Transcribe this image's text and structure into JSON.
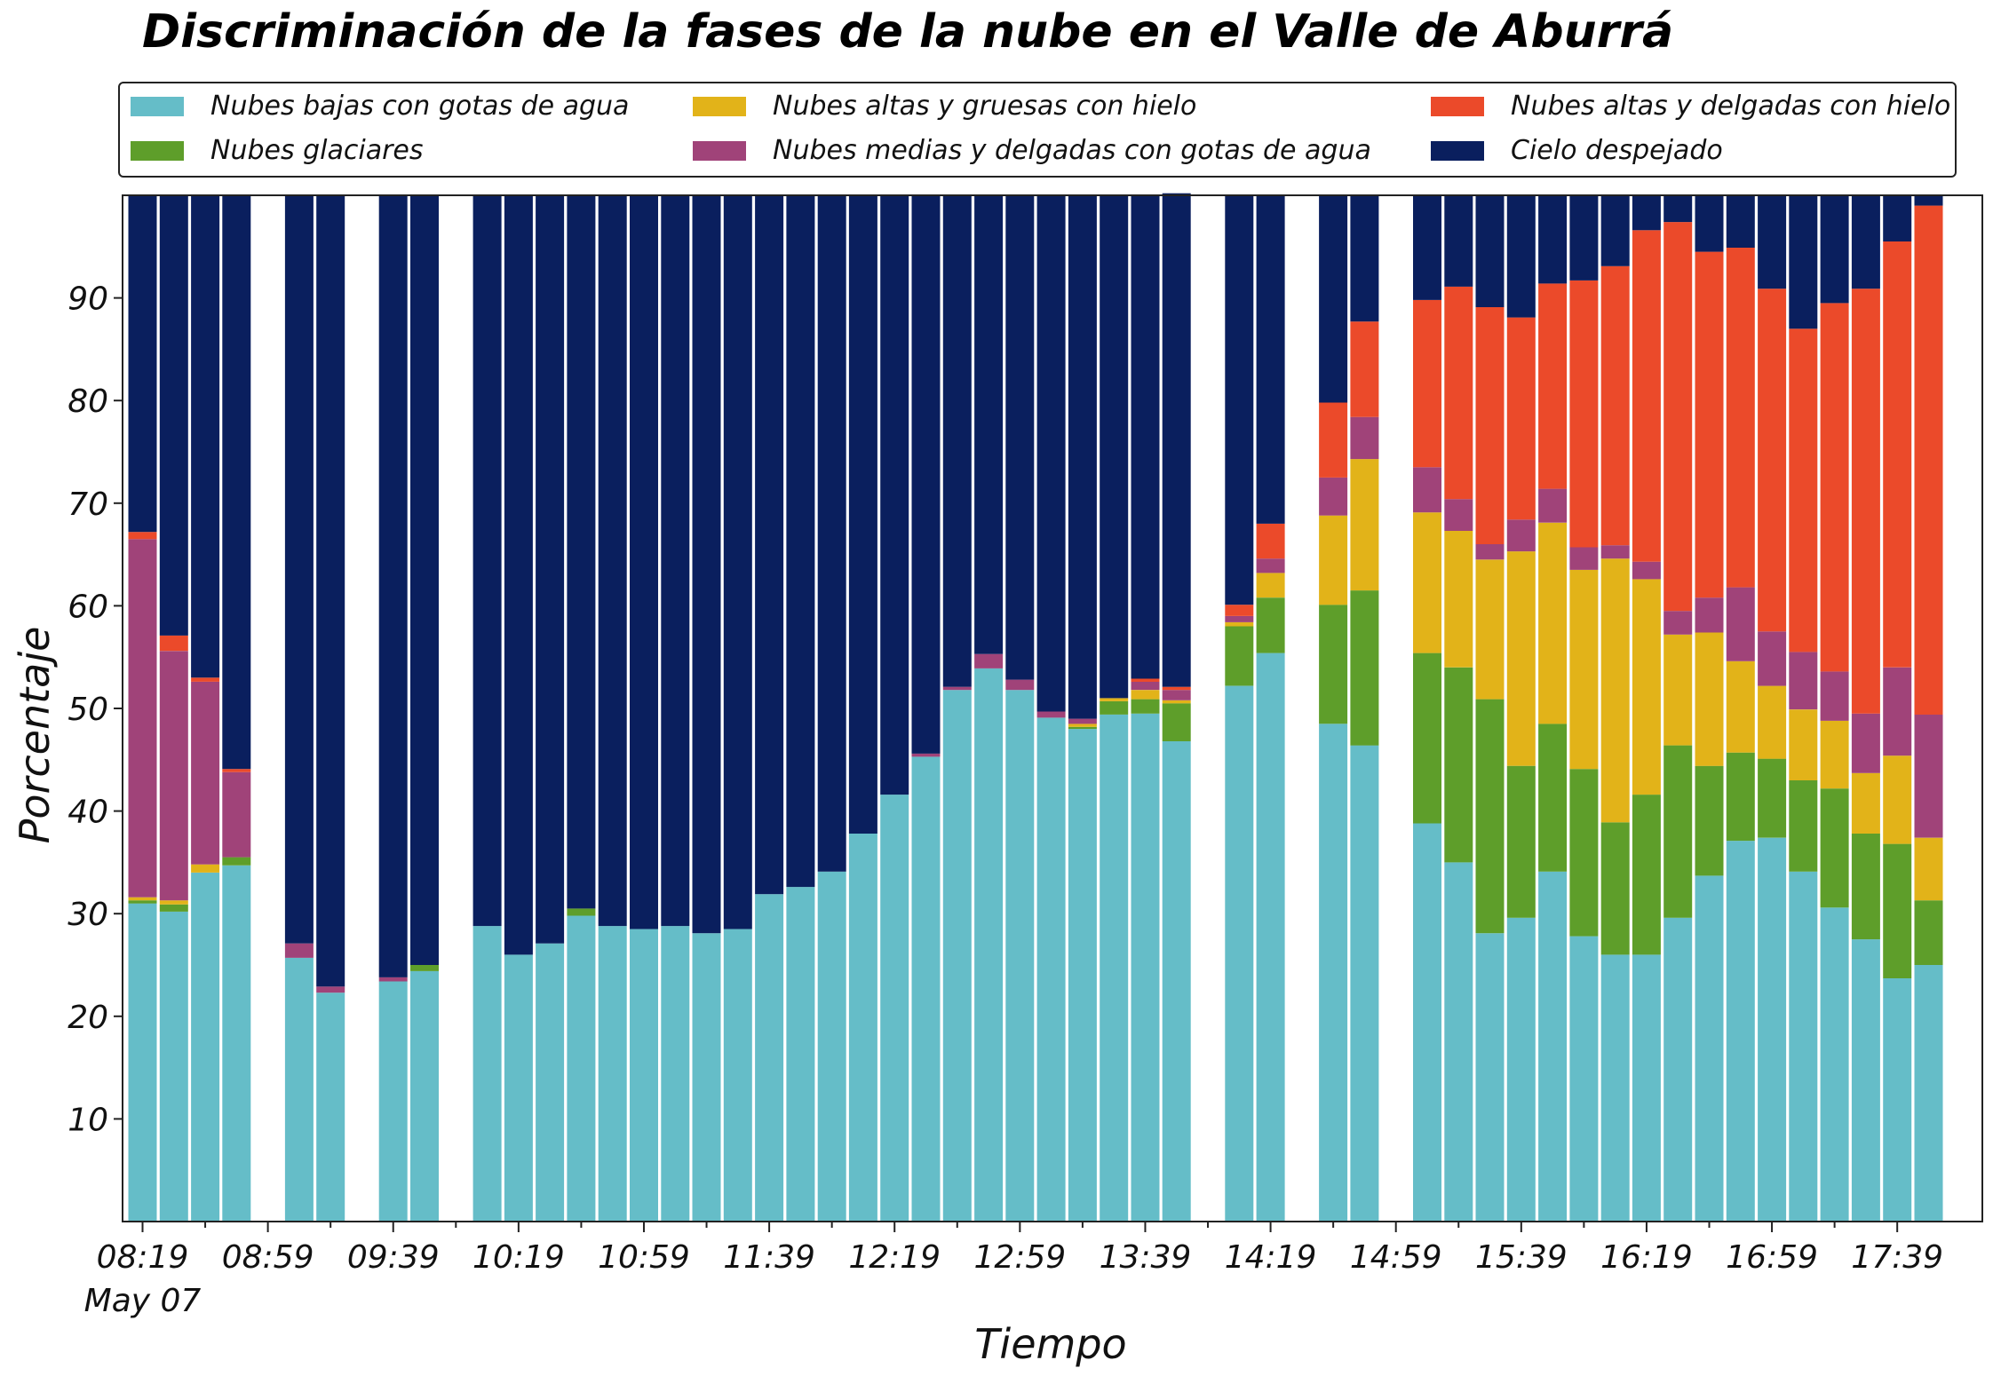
{
  "chart_data": {
    "type": "bar",
    "stacked": true,
    "title": "Discriminación de la fases de la nube en el Valle de Aburrá",
    "xlabel": "Tiempo",
    "ylabel": "Porcentaje",
    "ylim": [
      0,
      100
    ],
    "yticks": [
      10,
      20,
      30,
      40,
      50,
      60,
      70,
      80,
      90
    ],
    "xtick_labels": [
      "08:19",
      "08:59",
      "09:39",
      "10:19",
      "10:59",
      "11:39",
      "12:19",
      "12:59",
      "13:39",
      "14:19",
      "14:59",
      "15:39",
      "16:19",
      "16:59",
      "17:39"
    ],
    "x_date_label": "May 07",
    "legend_position": "top",
    "legend": [
      {
        "name": "Nubes bajas con gotas de agua",
        "color": "#65BDC8"
      },
      {
        "name": "Nubes altas y gruesas con hielo",
        "color": "#E2B319"
      },
      {
        "name": "Nubes altas y delgadas con hielo",
        "color": "#EB4A2A"
      },
      {
        "name": "Nubes glaciares",
        "color": "#5E9E2A"
      },
      {
        "name": "Nubes medias y delgadas con gotas de agua",
        "color": "#A04379"
      },
      {
        "name": "Cielo despejado",
        "color": "#0A1F5E"
      }
    ],
    "stack_order": [
      "Nubes bajas con gotas de agua",
      "Nubes glaciares",
      "Nubes altas y gruesas con hielo",
      "Nubes medias y delgadas con gotas de agua",
      "Nubes altas y delgadas con hielo",
      "Cielo despejado"
    ],
    "x": [
      "08:19",
      "08:29",
      "08:39",
      "08:49",
      "08:59",
      "09:09",
      "09:19",
      "09:29",
      "09:39",
      "09:49",
      "09:59",
      "10:09",
      "10:19",
      "10:29",
      "10:39",
      "10:49",
      "10:59",
      "11:09",
      "11:19",
      "11:29",
      "11:39",
      "11:49",
      "11:59",
      "12:09",
      "12:19",
      "12:29",
      "12:39",
      "12:49",
      "12:59",
      "13:09",
      "13:19",
      "13:29",
      "13:39",
      "13:49",
      "13:59",
      "14:09",
      "14:19",
      "14:29",
      "14:39",
      "14:49",
      "14:59",
      "15:09",
      "15:19",
      "15:29",
      "15:39",
      "15:49",
      "15:59",
      "16:09",
      "16:19",
      "16:29",
      "16:39",
      "16:49",
      "16:59",
      "17:09",
      "17:19",
      "17:29",
      "17:39",
      "17:49"
    ],
    "series": [
      {
        "name": "Nubes bajas con gotas de agua",
        "color": "#65BDC8",
        "values": [
          31,
          30.2,
          34,
          34.7,
          null,
          25.7,
          22.3,
          null,
          23.4,
          24.4,
          null,
          28.8,
          26,
          27.1,
          29.8,
          28.8,
          28.5,
          28.8,
          28.1,
          28.5,
          31.9,
          32.6,
          34.1,
          37.8,
          41.6,
          45.3,
          51.8,
          53.9,
          51.8,
          49.1,
          48,
          49.4,
          49.5,
          46.8,
          null,
          52.2,
          55.4,
          null,
          48.5,
          46.4,
          null,
          38.8,
          35,
          28.1,
          29.6,
          34.1,
          27.8,
          26,
          26,
          29.6,
          33.7,
          37.1,
          37.4,
          34.1,
          30.6,
          27.5,
          23.7,
          25
        ]
      },
      {
        "name": "Nubes glaciares",
        "color": "#5E9E2A",
        "values": [
          0.3,
          0.7,
          0,
          0.8,
          null,
          0,
          0,
          null,
          0,
          0.6,
          null,
          0,
          0,
          0,
          0.7,
          0,
          0,
          0,
          0,
          0,
          0,
          0,
          0,
          0,
          0,
          0,
          0,
          0,
          0,
          0,
          0.2,
          1.3,
          1.4,
          3.7,
          null,
          5.8,
          5.4,
          null,
          11.6,
          15.1,
          null,
          16.6,
          19,
          22.8,
          14.8,
          14.4,
          16.3,
          12.9,
          15.6,
          16.8,
          10.7,
          8.6,
          7.7,
          8.9,
          11.6,
          10.3,
          13.1,
          6.3
        ]
      },
      {
        "name": "Nubes altas y gruesas con hielo",
        "color": "#E2B319",
        "values": [
          0.3,
          0.4,
          0.8,
          0,
          null,
          0,
          0,
          null,
          0,
          0,
          null,
          0,
          0,
          0,
          0,
          0,
          0,
          0,
          0,
          0,
          0,
          0,
          0,
          0,
          0,
          0,
          0,
          0,
          0,
          0,
          0.3,
          0.3,
          0.9,
          0.3,
          null,
          0.4,
          2.4,
          null,
          8.7,
          12.8,
          null,
          13.7,
          13.3,
          13.6,
          20.9,
          19.6,
          19.4,
          25.7,
          21,
          10.8,
          13,
          8.9,
          7.1,
          6.9,
          6.6,
          5.9,
          8.6,
          6.1
        ]
      },
      {
        "name": "Nubes medias y delgadas con gotas de agua",
        "color": "#A04379",
        "values": [
          34.9,
          24.3,
          17.8,
          8.3,
          null,
          1.4,
          0.6,
          null,
          0.4,
          0,
          null,
          0,
          0,
          0,
          0,
          0,
          0,
          0,
          0,
          0,
          0,
          0,
          0,
          0,
          0,
          0.3,
          0.3,
          1.4,
          1,
          0.6,
          0.5,
          0,
          0.8,
          1,
          null,
          0.6,
          1.4,
          null,
          3.7,
          4.1,
          null,
          4.4,
          3.1,
          1.5,
          3.1,
          3.3,
          2.2,
          1.3,
          1.7,
          2.3,
          3.4,
          7.2,
          5.3,
          5.6,
          4.8,
          5.8,
          8.6,
          12
        ]
      },
      {
        "name": "Nubes altas y delgadas con hielo",
        "color": "#EB4A2A",
        "values": [
          0.7,
          1.5,
          0.4,
          0.3,
          null,
          0,
          0,
          null,
          0,
          0,
          null,
          0,
          0,
          0,
          0,
          0,
          0,
          0,
          0,
          0,
          0,
          0,
          0,
          0,
          0,
          0,
          0,
          0,
          0,
          0,
          0,
          0,
          0.3,
          0.3,
          null,
          1.1,
          3.4,
          null,
          7.3,
          9.3,
          null,
          16.3,
          20.7,
          23.1,
          19.7,
          20,
          26,
          27.2,
          32.3,
          37.9,
          33.7,
          33.1,
          33.4,
          31.5,
          35.9,
          41.4,
          41.5,
          49.6
        ]
      },
      {
        "name": "Cielo despejado",
        "color": "#0A1F5E",
        "values": [
          32.8,
          42.9,
          47,
          55.9,
          null,
          72.9,
          77.1,
          null,
          76.2,
          75,
          null,
          71.2,
          74,
          72.9,
          69.5,
          71.2,
          71.5,
          71.2,
          71.9,
          71.5,
          68.1,
          67.4,
          65.9,
          62.2,
          58.4,
          54.4,
          47.9,
          44.7,
          47.2,
          50.3,
          51,
          49,
          47.1,
          48.1,
          null,
          39.9,
          32,
          null,
          20.2,
          12.3,
          null,
          10.2,
          8.9,
          10.9,
          11.9,
          8.6,
          8.3,
          6.9,
          3.4,
          2.6,
          5.5,
          5.1,
          9.1,
          13,
          10.5,
          9.1,
          4.5,
          1
        ]
      }
    ]
  }
}
